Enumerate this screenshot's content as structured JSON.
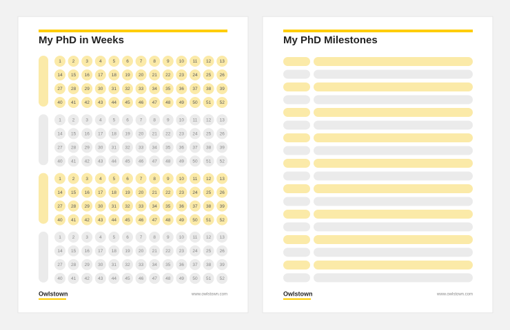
{
  "weeks_page": {
    "title": "My PhD in Weeks",
    "weeks": [
      1,
      2,
      3,
      4,
      5,
      6,
      7,
      8,
      9,
      10,
      11,
      12,
      13,
      14,
      15,
      16,
      17,
      18,
      19,
      20,
      21,
      22,
      23,
      24,
      25,
      26,
      27,
      28,
      29,
      30,
      31,
      32,
      33,
      34,
      35,
      36,
      37,
      38,
      39,
      40,
      41,
      42,
      43,
      44,
      45,
      46,
      47,
      48,
      49,
      50,
      51,
      52
    ],
    "year_colors": [
      "#fbeaa8",
      "#ebebeb",
      "#fbeaa8",
      "#ebebeb"
    ],
    "brand": "Owlstown",
    "url": "www.owlstown.com"
  },
  "milestones_page": {
    "title": "My PhD Milestones",
    "brand": "Owlstown",
    "url": "www.owlstown.com"
  }
}
